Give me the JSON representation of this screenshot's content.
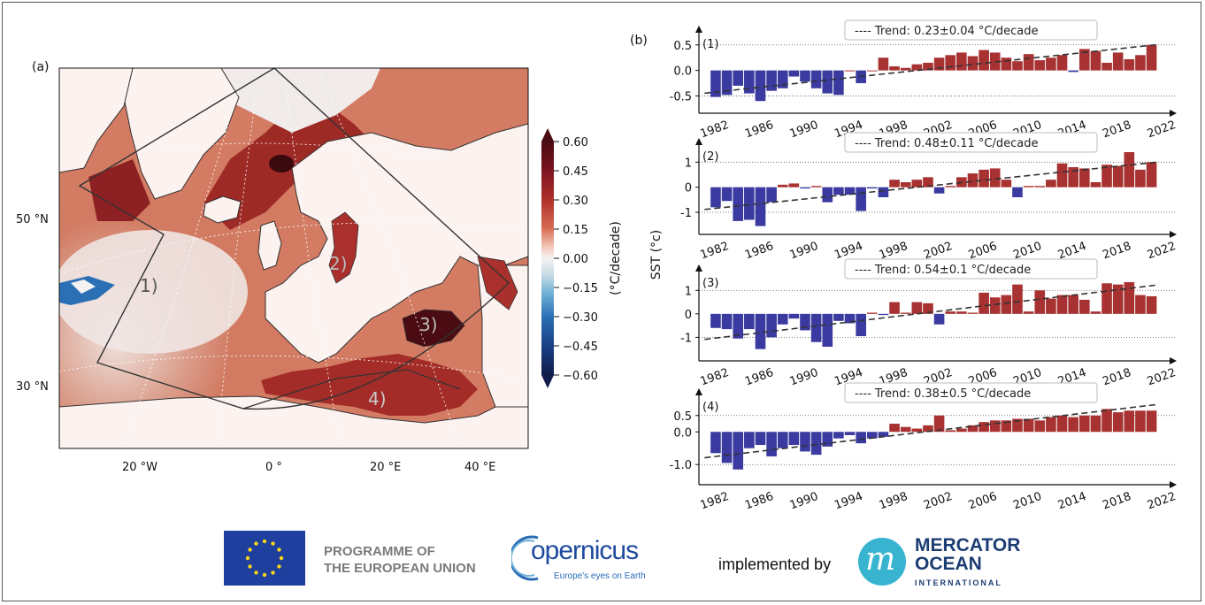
{
  "panel_a_label": "(a)",
  "panel_b_label": "(b)",
  "map": {
    "lon_ticks": [
      "20 °W",
      "0 °",
      "20 °E",
      "40 °E"
    ],
    "lat_ticks": [
      "50 °N",
      "30 °N"
    ],
    "region_labels": [
      "1)",
      "2)",
      "3)",
      "4)"
    ],
    "colorbar": {
      "label": "(°C/decade)",
      "ticks": [
        "0.60",
        "0.45",
        "0.30",
        "0.15",
        "0.00",
        "−0.15",
        "−0.30",
        "−0.45",
        "−0.60"
      ],
      "colors": [
        "#4a0b12",
        "#7a1420",
        "#b0302a",
        "#d66a52",
        "#f2c6b6",
        "#f4f2f2",
        "#c8dbe4",
        "#6fb1d6",
        "#2b6fb5",
        "#1a3f82",
        "#101c4a"
      ]
    }
  },
  "chart_data": [
    {
      "type": "bar",
      "title": "(1)",
      "trend": "---- Trend: 0.23±0.04 °C/decade",
      "ylabel": "",
      "y_ticks": [
        "0.5",
        "0.0",
        "-0.5"
      ],
      "ylim": [
        -0.7,
        0.6
      ],
      "x": [
        1982,
        1983,
        1984,
        1985,
        1986,
        1987,
        1988,
        1989,
        1990,
        1991,
        1992,
        1993,
        1994,
        1995,
        1996,
        1997,
        1998,
        1999,
        2000,
        2001,
        2002,
        2003,
        2004,
        2005,
        2006,
        2007,
        2008,
        2009,
        2010,
        2011,
        2012,
        2013,
        2014,
        2015,
        2016,
        2017,
        2018,
        2019,
        2020,
        2021
      ],
      "values": [
        -0.52,
        -0.48,
        -0.3,
        -0.45,
        -0.6,
        -0.4,
        -0.35,
        -0.12,
        -0.22,
        -0.35,
        -0.45,
        -0.48,
        0.0,
        -0.25,
        0.0,
        0.25,
        0.08,
        0.05,
        0.12,
        0.15,
        0.25,
        0.3,
        0.35,
        0.28,
        0.4,
        0.35,
        0.25,
        0.18,
        0.32,
        0.2,
        0.25,
        0.3,
        -0.03,
        0.42,
        0.38,
        0.15,
        0.35,
        0.22,
        0.3,
        0.5
      ],
      "x_ticks": [
        "1982",
        "1986",
        "1990",
        "1994",
        "1998",
        "2002",
        "2006",
        "2010",
        "2014",
        "2018",
        "2022"
      ]
    },
    {
      "type": "bar",
      "title": "(2)",
      "trend": "---- Trend: 0.48±0.11 °C/decade",
      "ylabel": "SST (°c)",
      "y_ticks": [
        "1",
        "0",
        "-1"
      ],
      "ylim": [
        -1.6,
        1.4
      ],
      "x": [
        1982,
        1983,
        1984,
        1985,
        1986,
        1987,
        1988,
        1989,
        1990,
        1991,
        1992,
        1993,
        1994,
        1995,
        1996,
        1997,
        1998,
        1999,
        2000,
        2001,
        2002,
        2003,
        2004,
        2005,
        2006,
        2007,
        2008,
        2009,
        2010,
        2011,
        2012,
        2013,
        2014,
        2015,
        2016,
        2017,
        2018,
        2019,
        2020,
        2021
      ],
      "values": [
        -0.8,
        -0.55,
        -1.35,
        -1.3,
        -1.55,
        -0.6,
        0.1,
        0.15,
        -0.05,
        0.05,
        -0.6,
        -0.3,
        -0.3,
        -0.95,
        -0.05,
        -0.4,
        0.3,
        0.2,
        0.3,
        0.4,
        -0.25,
        0.05,
        0.4,
        0.55,
        0.7,
        0.75,
        0.3,
        -0.4,
        0.05,
        0.05,
        0.3,
        0.95,
        0.8,
        0.75,
        0.2,
        0.9,
        0.85,
        1.4,
        0.7,
        1.0
      ],
      "x_ticks": [
        "1982",
        "1986",
        "1990",
        "1994",
        "1998",
        "2002",
        "2006",
        "2010",
        "2014",
        "2018",
        "2022"
      ]
    },
    {
      "type": "bar",
      "title": "(3)",
      "trend": "---- Trend: 0.54±0.1 °C/decade",
      "ylabel": "",
      "y_ticks": [
        "1",
        "0",
        "-1"
      ],
      "ylim": [
        -1.7,
        1.5
      ],
      "x": [
        1982,
        1983,
        1984,
        1985,
        1986,
        1987,
        1988,
        1989,
        1990,
        1991,
        1992,
        1993,
        1994,
        1995,
        1996,
        1997,
        1998,
        1999,
        2000,
        2001,
        2002,
        2003,
        2004,
        2005,
        2006,
        2007,
        2008,
        2009,
        2010,
        2011,
        2012,
        2013,
        2014,
        2015,
        2016,
        2017,
        2018,
        2019,
        2020,
        2021
      ],
      "values": [
        -0.6,
        -0.65,
        -1.05,
        -0.65,
        -1.5,
        -1.0,
        -0.45,
        -0.2,
        -0.7,
        -1.2,
        -1.4,
        -0.3,
        -0.4,
        -0.95,
        0.05,
        -0.05,
        0.5,
        0.05,
        0.5,
        0.45,
        -0.45,
        0.1,
        0.1,
        0.05,
        0.9,
        0.7,
        0.8,
        1.25,
        0.1,
        1.0,
        0.65,
        0.8,
        0.8,
        0.6,
        0.1,
        1.3,
        1.25,
        1.35,
        0.8,
        0.75
      ],
      "x_ticks": [
        "1982",
        "1986",
        "1990",
        "1994",
        "1998",
        "2002",
        "2006",
        "2010",
        "2014",
        "2018",
        "2022"
      ]
    },
    {
      "type": "bar",
      "title": "(4)",
      "trend": "---- Trend: 0.38±0.5 °C/decade",
      "ylabel": "",
      "y_ticks": [
        "0.5",
        "0.0",
        "-1.0"
      ],
      "ylim": [
        -1.4,
        0.9
      ],
      "x": [
        1982,
        1983,
        1984,
        1985,
        1986,
        1987,
        1988,
        1989,
        1990,
        1991,
        1992,
        1993,
        1994,
        1995,
        1996,
        1997,
        1998,
        1999,
        2000,
        2001,
        2002,
        2003,
        2004,
        2005,
        2006,
        2007,
        2008,
        2009,
        2010,
        2011,
        2012,
        2013,
        2014,
        2015,
        2016,
        2017,
        2018,
        2019,
        2020,
        2021
      ],
      "values": [
        -0.65,
        -0.95,
        -1.15,
        -0.5,
        -0.4,
        -0.75,
        -0.5,
        -0.4,
        -0.6,
        -0.7,
        -0.45,
        -0.2,
        -0.1,
        -0.35,
        -0.2,
        -0.15,
        0.25,
        0.15,
        0.1,
        0.2,
        0.5,
        0.05,
        0.1,
        0.2,
        0.3,
        0.35,
        0.35,
        0.4,
        0.4,
        0.35,
        0.45,
        0.5,
        0.45,
        0.5,
        0.5,
        0.7,
        0.6,
        0.65,
        0.65,
        0.65
      ],
      "x_ticks": [
        "1982",
        "1986",
        "1990",
        "1994",
        "1998",
        "2002",
        "2006",
        "2010",
        "2014",
        "2018",
        "2022"
      ]
    }
  ],
  "footer": {
    "eu_line1": "PROGRAMME OF",
    "eu_line2": "THE EUROPEAN UNION",
    "copernicus": "opernicus",
    "copernicus_tagline": "Europe's eyes on Earth",
    "implemented_by": "implemented by",
    "mercator_line1": "MERCATOR",
    "mercator_line2": "OCEAN",
    "mercator_line3": "INTERNATIONAL"
  },
  "colors": {
    "positive": "#a83232",
    "negative": "#3a3aa0"
  }
}
